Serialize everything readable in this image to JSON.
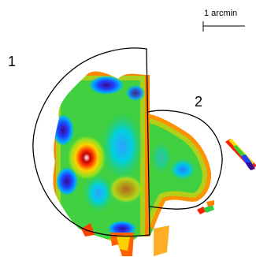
{
  "scale_bar": {
    "label": "1 arcmin"
  },
  "regions": [
    {
      "id": "1",
      "label": "1"
    },
    {
      "id": "2",
      "label": "2"
    }
  ],
  "colors": {
    "outline": "#000000",
    "colormap": [
      "#3a0a8c",
      "#2040ff",
      "#00b0ff",
      "#00e0c0",
      "#30d040",
      "#a0e020",
      "#ffe000",
      "#ff8000",
      "#ff2000",
      "#c00000",
      "#ffffff"
    ],
    "background": "#ffffff"
  }
}
